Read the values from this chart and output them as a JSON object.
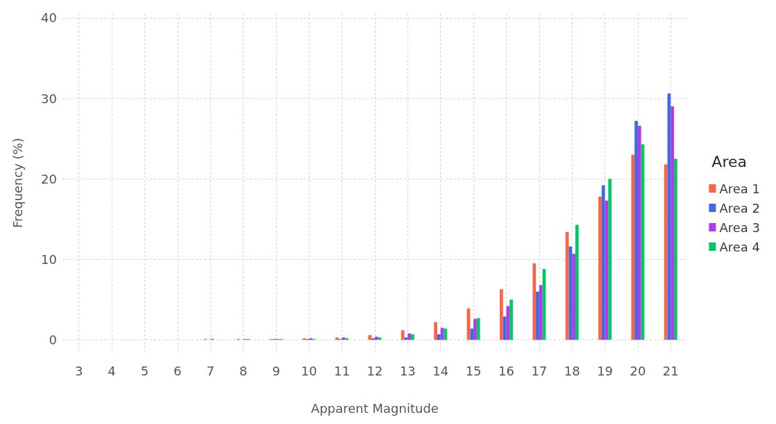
{
  "chart_data": {
    "type": "bar",
    "xlabel": "Apparent Magnitude",
    "ylabel": "Frequency (%)",
    "legend_title": "Area",
    "categories": [
      "3",
      "4",
      "5",
      "6",
      "7",
      "8",
      "9",
      "10",
      "11",
      "12",
      "13",
      "14",
      "15",
      "16",
      "17",
      "18",
      "19",
      "20",
      "21"
    ],
    "series": [
      {
        "name": "Area 1",
        "color": "#ff6347",
        "values": [
          0,
          0,
          0,
          0,
          0.1,
          0.1,
          0.1,
          0.2,
          0.3,
          0.6,
          1.2,
          2.2,
          3.9,
          6.3,
          9.5,
          13.4,
          17.8,
          23.0,
          21.8
        ]
      },
      {
        "name": "Area 2",
        "color": "#4169e1",
        "values": [
          0,
          0,
          0,
          0,
          0,
          0,
          0.1,
          0.1,
          0.1,
          0.2,
          0.3,
          0.7,
          1.4,
          2.9,
          6.0,
          11.6,
          19.2,
          27.2,
          30.6
        ]
      },
      {
        "name": "Area 3",
        "color": "#b03ae8",
        "values": [
          0,
          0,
          0,
          0,
          0.1,
          0.1,
          0.1,
          0.2,
          0.3,
          0.4,
          0.8,
          1.5,
          2.6,
          4.2,
          6.8,
          10.7,
          17.3,
          26.6,
          29.0
        ]
      },
      {
        "name": "Area 4",
        "color": "#00c864",
        "values": [
          0,
          0,
          0,
          0,
          0,
          0.1,
          0.1,
          0.1,
          0.2,
          0.3,
          0.7,
          1.4,
          2.7,
          5.0,
          8.8,
          14.3,
          20.0,
          24.3,
          22.5
        ]
      }
    ],
    "ylim": [
      -1.5,
      40.5
    ],
    "yticks": [
      0,
      10,
      20,
      30,
      40
    ],
    "grid": true,
    "legend": "right"
  }
}
